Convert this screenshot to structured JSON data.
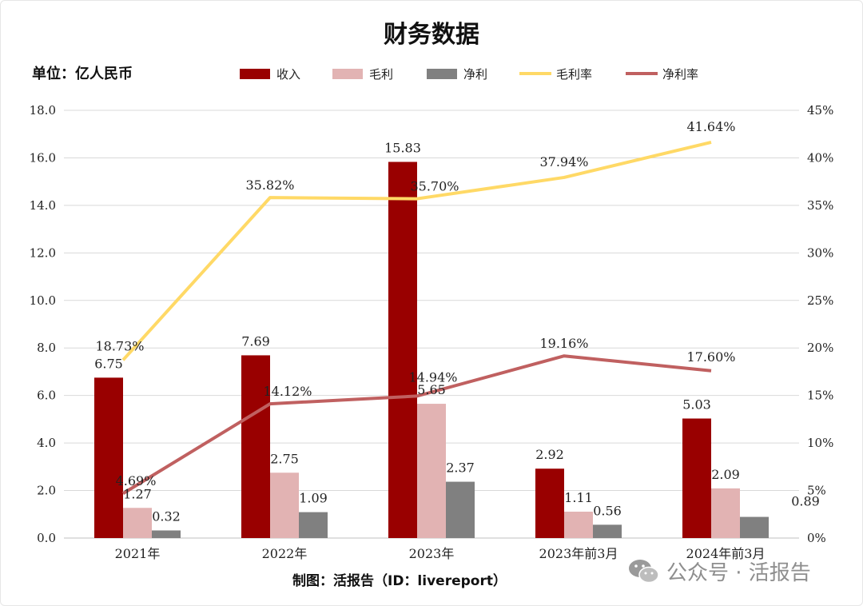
{
  "chart_data": {
    "type": "bar",
    "title": "财务数据",
    "unit_label": "单位：亿人民币",
    "categories": [
      "2021年",
      "2022年",
      "2023年",
      "2023年前3月",
      "2024年前3月"
    ],
    "series": [
      {
        "name": "收入",
        "kind": "bar",
        "axis": "left",
        "color": "#990000",
        "values": [
          6.75,
          7.69,
          15.83,
          2.92,
          5.03
        ]
      },
      {
        "name": "毛利",
        "kind": "bar",
        "axis": "left",
        "color": "#e2b3b3",
        "values": [
          1.27,
          2.75,
          5.65,
          1.11,
          2.09
        ]
      },
      {
        "name": "净利",
        "kind": "bar",
        "axis": "left",
        "color": "#808080",
        "values": [
          0.32,
          1.09,
          2.37,
          0.56,
          0.89
        ]
      },
      {
        "name": "毛利率",
        "kind": "line",
        "axis": "right",
        "color": "#ffd966",
        "values": [
          18.73,
          35.82,
          35.7,
          37.94,
          41.64
        ]
      },
      {
        "name": "净利率",
        "kind": "line",
        "axis": "right",
        "color": "#c06060",
        "values": [
          4.69,
          14.12,
          14.94,
          19.16,
          17.6
        ]
      }
    ],
    "y_left": {
      "min": 0,
      "max": 18,
      "step": 2,
      "ticks": [
        "0.0",
        "2.0",
        "4.0",
        "6.0",
        "8.0",
        "10.0",
        "12.0",
        "14.0",
        "16.0",
        "18.0"
      ]
    },
    "y_right": {
      "min": 0,
      "max": 45,
      "step": 5,
      "ticks": [
        "0%",
        "5%",
        "10%",
        "15%",
        "20%",
        "25%",
        "30%",
        "35%",
        "40%",
        "45%"
      ]
    },
    "bar_labels": [
      [
        "6.75",
        "7.69",
        "15.83",
        "2.92",
        "5.03"
      ],
      [
        "1.27",
        "2.75",
        "5.65",
        "1.11",
        "2.09"
      ],
      [
        "0.32",
        "1.09",
        "2.37",
        "0.56",
        "0.89"
      ]
    ],
    "line_labels": [
      [
        "18.73%",
        "35.82%",
        "35.70%",
        "37.94%",
        "41.64%"
      ],
      [
        "4.69%",
        "14.12%",
        "14.94%",
        "19.16%",
        "17.60%"
      ]
    ],
    "grid": true,
    "legend_position": "top"
  },
  "footer": {
    "credit": "制图：活报告（ID：livereport）"
  },
  "watermark": {
    "text": "公众号 · 活报告",
    "icon": "wechat-icon"
  }
}
